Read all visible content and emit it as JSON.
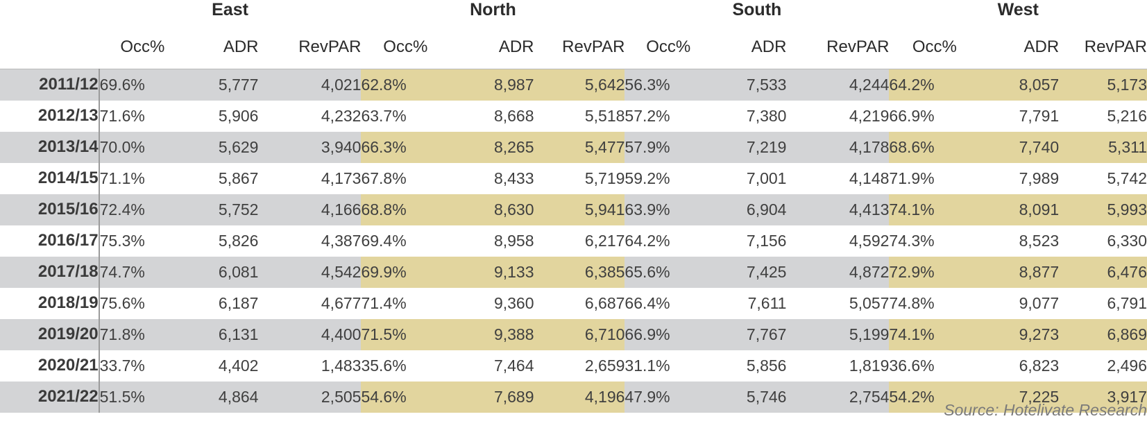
{
  "chart_data": {
    "type": "table",
    "regions": [
      "East",
      "North",
      "South",
      "West"
    ],
    "metrics": [
      "Occ%",
      "ADR",
      "RevPAR"
    ],
    "rows": [
      {
        "year": "2011/12",
        "values": [
          [
            "69.6%",
            "5,777",
            "4,021"
          ],
          [
            "62.8%",
            "8,987",
            "5,642"
          ],
          [
            "56.3%",
            "7,533",
            "4,244"
          ],
          [
            "64.2%",
            "8,057",
            "5,173"
          ]
        ]
      },
      {
        "year": "2012/13",
        "values": [
          [
            "71.6%",
            "5,906",
            "4,232"
          ],
          [
            "63.7%",
            "8,668",
            "5,518"
          ],
          [
            "57.2%",
            "7,380",
            "4,219"
          ],
          [
            "66.9%",
            "7,791",
            "5,216"
          ]
        ]
      },
      {
        "year": "2013/14",
        "values": [
          [
            "70.0%",
            "5,629",
            "3,940"
          ],
          [
            "66.3%",
            "8,265",
            "5,477"
          ],
          [
            "57.9%",
            "7,219",
            "4,178"
          ],
          [
            "68.6%",
            "7,740",
            "5,311"
          ]
        ]
      },
      {
        "year": "2014/15",
        "values": [
          [
            "71.1%",
            "5,867",
            "4,173"
          ],
          [
            "67.8%",
            "8,433",
            "5,719"
          ],
          [
            "59.2%",
            "7,001",
            "4,148"
          ],
          [
            "71.9%",
            "7,989",
            "5,742"
          ]
        ]
      },
      {
        "year": "2015/16",
        "values": [
          [
            "72.4%",
            "5,752",
            "4,166"
          ],
          [
            "68.8%",
            "8,630",
            "5,941"
          ],
          [
            "63.9%",
            "6,904",
            "4,413"
          ],
          [
            "74.1%",
            "8,091",
            "5,993"
          ]
        ]
      },
      {
        "year": "2016/17",
        "values": [
          [
            "75.3%",
            "5,826",
            "4,387"
          ],
          [
            "69.4%",
            "8,958",
            "6,217"
          ],
          [
            "64.2%",
            "7,156",
            "4,592"
          ],
          [
            "74.3%",
            "8,523",
            "6,330"
          ]
        ]
      },
      {
        "year": "2017/18",
        "values": [
          [
            "74.7%",
            "6,081",
            "4,542"
          ],
          [
            "69.9%",
            "9,133",
            "6,385"
          ],
          [
            "65.6%",
            "7,425",
            "4,872"
          ],
          [
            "72.9%",
            "8,877",
            "6,476"
          ]
        ]
      },
      {
        "year": "2018/19",
        "values": [
          [
            "75.6%",
            "6,187",
            "4,677"
          ],
          [
            "71.4%",
            "9,360",
            "6,687"
          ],
          [
            "66.4%",
            "7,611",
            "5,057"
          ],
          [
            "74.8%",
            "9,077",
            "6,791"
          ]
        ]
      },
      {
        "year": "2019/20",
        "values": [
          [
            "71.8%",
            "6,131",
            "4,400"
          ],
          [
            "71.5%",
            "9,388",
            "6,710"
          ],
          [
            "66.9%",
            "7,767",
            "5,199"
          ],
          [
            "74.1%",
            "9,273",
            "6,869"
          ]
        ]
      },
      {
        "year": "2020/21",
        "values": [
          [
            "33.7%",
            "4,402",
            "1,483"
          ],
          [
            "35.6%",
            "7,464",
            "2,659"
          ],
          [
            "31.1%",
            "5,856",
            "1,819"
          ],
          [
            "36.6%",
            "6,823",
            "2,496"
          ]
        ]
      },
      {
        "year": "2021/22",
        "values": [
          [
            "51.5%",
            "4,864",
            "2,505"
          ],
          [
            "54.6%",
            "7,689",
            "4,196"
          ],
          [
            "47.9%",
            "5,746",
            "2,754"
          ],
          [
            "54.2%",
            "7,225",
            "3,917"
          ]
        ]
      }
    ],
    "source": "Source: Hotelivate Research",
    "colors": {
      "band_gray": "#d3d4d6",
      "band_gold": "#e2d59e",
      "separator": "#9b9b9b"
    }
  }
}
